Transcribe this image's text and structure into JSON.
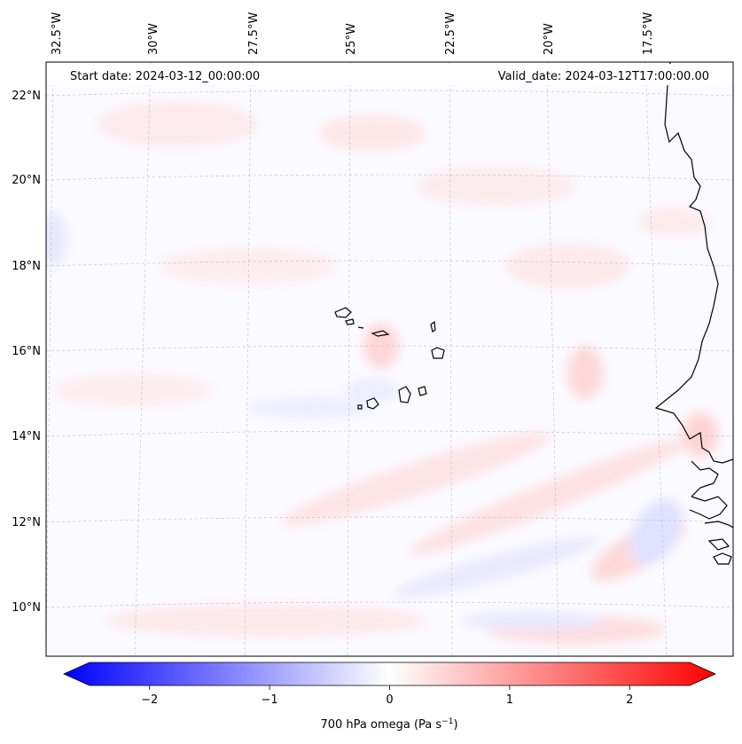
{
  "map": {
    "start_date_label": "Start date: 2024-03-12_00:00:00",
    "valid_date_label": "Valid_date: 2024-03-12T17:00:00.00",
    "longitude_labels": [
      "32.5°W",
      "30°W",
      "27.5°W",
      "25°W",
      "22.5°W",
      "20°W",
      "17.5°W"
    ],
    "latitude_labels": [
      "22°N",
      "20°N",
      "18°N",
      "16°N",
      "14°N",
      "12°N",
      "10°N"
    ],
    "field": "700 hPa omega",
    "colormap": "bwr"
  },
  "colorbar": {
    "ticks": [
      -2,
      -1,
      0,
      1,
      2
    ],
    "tick_labels": [
      "−2",
      "−1",
      "0",
      "1",
      "2"
    ],
    "range": [
      -2.5,
      2.5
    ],
    "label_main": "700 hPa omega (Pa s",
    "label_exp": "−1",
    "label_close": ")",
    "colors": {
      "negative": "#0000ff",
      "zero": "#ffffff",
      "positive": "#ff0000"
    }
  }
}
